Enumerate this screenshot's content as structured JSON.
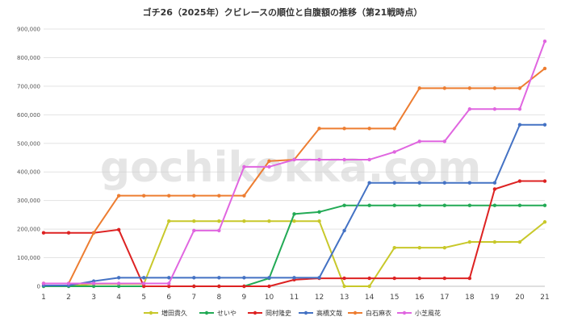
{
  "watermark": "gochikokka.com",
  "chart_data": {
    "type": "line",
    "title": "ゴチ26（2025年）クビレースの順位と自腹額の推移（第21戦時点）",
    "xlabel": "",
    "ylabel": "",
    "categories": [
      "1",
      "2",
      "3",
      "4",
      "5",
      "6",
      "7",
      "8",
      "9",
      "10",
      "11",
      "12",
      "13",
      "14",
      "15",
      "16",
      "17",
      "18",
      "19",
      "20",
      "21"
    ],
    "ylim": [
      0,
      900000
    ],
    "yticks": [
      0,
      100000,
      200000,
      300000,
      400000,
      500000,
      600000,
      700000,
      800000,
      900000
    ],
    "ytick_labels": [
      "0",
      "100,000",
      "200,000",
      "300,000",
      "400,000",
      "500,000",
      "600,000",
      "700,000",
      "800,000",
      "900,000"
    ],
    "grid": true,
    "legend_position": "bottom",
    "series": [
      {
        "name": "増田貴久",
        "color": "#c8c82a",
        "values": [
          0,
          0,
          8000,
          8000,
          8000,
          228000,
          228000,
          228000,
          228000,
          228000,
          228000,
          228000,
          0,
          0,
          135000,
          135000,
          135000,
          155000,
          155000,
          155000,
          225000
        ]
      },
      {
        "name": "せいや",
        "color": "#22aa55",
        "values": [
          0,
          0,
          0,
          0,
          0,
          0,
          0,
          0,
          0,
          28000,
          253000,
          260000,
          283000,
          283000,
          283000,
          283000,
          283000,
          283000,
          283000,
          283000,
          283000
        ]
      },
      {
        "name": "岡村隆史",
        "color": "#dd2222",
        "values": [
          187000,
          187000,
          187000,
          198000,
          0,
          0,
          0,
          0,
          0,
          0,
          23000,
          28000,
          28000,
          28000,
          28000,
          28000,
          28000,
          28000,
          340000,
          368000,
          368000
        ]
      },
      {
        "name": "高橋文哉",
        "color": "#4472c4",
        "values": [
          3000,
          3000,
          18000,
          30000,
          30000,
          30000,
          30000,
          30000,
          30000,
          30000,
          30000,
          30000,
          195000,
          362000,
          362000,
          362000,
          362000,
          362000,
          362000,
          565000,
          565000
        ]
      },
      {
        "name": "白石麻衣",
        "color": "#ed7d31",
        "values": [
          10000,
          10000,
          187000,
          317000,
          317000,
          317000,
          317000,
          317000,
          317000,
          438000,
          443000,
          552000,
          552000,
          552000,
          552000,
          693000,
          693000,
          693000,
          693000,
          693000,
          762000
        ]
      },
      {
        "name": "小芝風花",
        "color": "#e066e0",
        "values": [
          10000,
          10000,
          10000,
          10000,
          10000,
          10000,
          195000,
          195000,
          418000,
          418000,
          443000,
          443000,
          443000,
          443000,
          470000,
          507000,
          507000,
          620000,
          620000,
          620000,
          857000
        ]
      }
    ]
  }
}
